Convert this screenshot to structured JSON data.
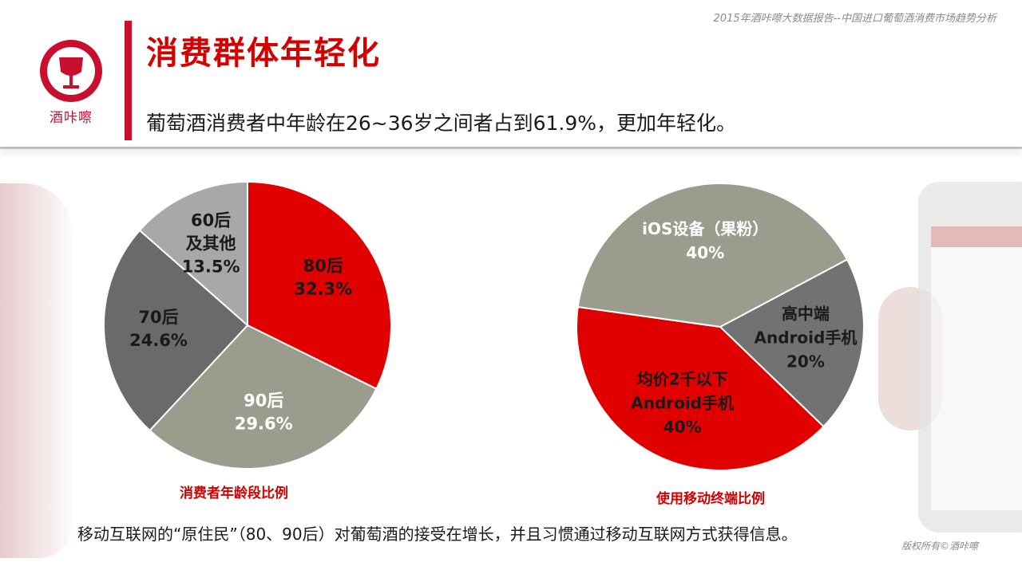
{
  "header": {
    "report_title": "2015年酒咔嚓大数据报告--中国进口葡萄酒消费市场趋势分析",
    "logo_text": "酒咔嚓",
    "slide_title": "消费群体年轻化",
    "subtitle": "葡萄酒消费者中年龄在26~36岁之间者占到61.9%，更加年轻化。"
  },
  "colors": {
    "accent_red": "#d40000",
    "gray": "#9c9c8e",
    "dark_gray": "#6a6a6a",
    "light_gray": "#a8a8a8"
  },
  "chart_data": [
    {
      "type": "pie",
      "caption": "消费者年龄段比例",
      "slices": [
        {
          "label_lines": [
            "80后"
          ],
          "value": 32.3,
          "value_label": "32.3%",
          "color": "#e00000",
          "text_color": "#1a1a1a"
        },
        {
          "label_lines": [
            "90后"
          ],
          "value": 29.6,
          "value_label": "29.6%",
          "color": "#9c9c8e",
          "text_color": "#ffffff"
        },
        {
          "label_lines": [
            "70后"
          ],
          "value": 24.6,
          "value_label": "24.6%",
          "color": "#6a6a6a",
          "text_color": "#1a1a1a"
        },
        {
          "label_lines": [
            "60后",
            "及其他"
          ],
          "value": 13.5,
          "value_label": "13.5%",
          "color": "#a8a8a8",
          "text_color": "#1a1a1a"
        }
      ]
    },
    {
      "type": "pie",
      "caption": "使用移动终端比例",
      "slices": [
        {
          "label_lines": [
            "高中端",
            "Android手机"
          ],
          "value": 20,
          "value_label": "20%",
          "color": "#727272",
          "text_color": "#1a1a1a"
        },
        {
          "label_lines": [
            "均价2千以下",
            "Android手机"
          ],
          "value": 40,
          "value_label": "40%",
          "color": "#e00000",
          "text_color": "#1a1a1a"
        },
        {
          "label_lines": [
            "iOS设备（果粉）"
          ],
          "value": 40,
          "value_label": "40%",
          "color": "#9c9c8e",
          "text_color": "#ffffff"
        }
      ]
    }
  ],
  "footer": {
    "text": "移动互联网的“原住民”（80、90后）对葡萄酒的接受在增长，并且习惯通过移动互联网方式获得信息。",
    "copyright": "版权所有©酒咔嚓"
  }
}
